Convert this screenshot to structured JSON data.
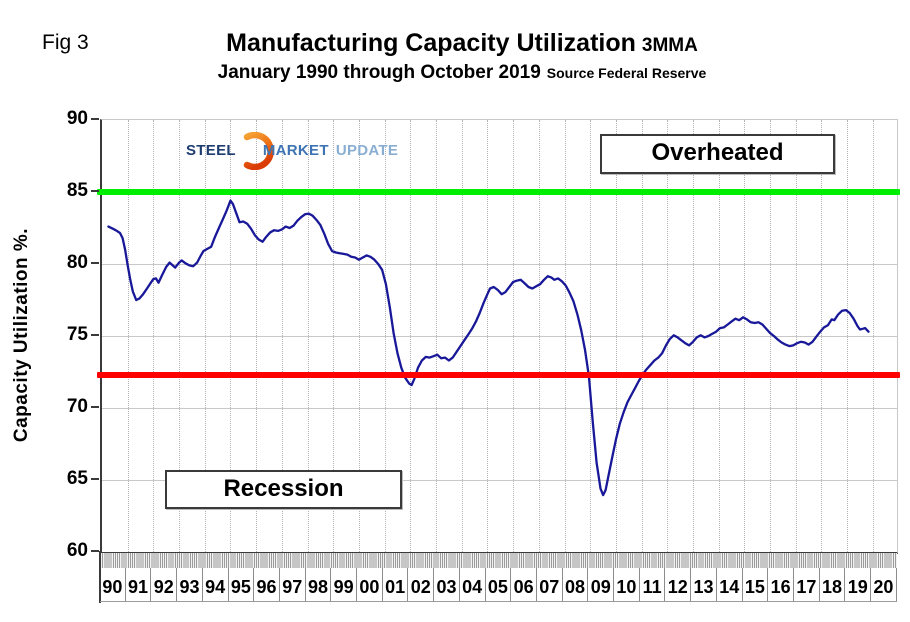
{
  "figure_label": "Fig 3",
  "title": {
    "main": "Manufacturing Capacity Utilization",
    "suffix": "3MMA"
  },
  "subtitle": {
    "main": "January 1990 through October 2019",
    "source": "Source Federal Reserve"
  },
  "logo": {
    "steel": "STEEL",
    "market": "MARKET",
    "update": "UPDATE"
  },
  "y_axis": {
    "title": "Capacity Utilization %.",
    "min": 60,
    "max": 90,
    "ticks": [
      90,
      85,
      80,
      75,
      70,
      65,
      60
    ]
  },
  "x_axis": {
    "start_year": 1990,
    "labels": [
      "90",
      "91",
      "92",
      "93",
      "94",
      "95",
      "96",
      "97",
      "98",
      "99",
      "00",
      "01",
      "02",
      "03",
      "04",
      "05",
      "06",
      "07",
      "08",
      "09",
      "10",
      "11",
      "12",
      "13",
      "14",
      "15",
      "16",
      "17",
      "18",
      "19",
      "20"
    ]
  },
  "reference_lines": [
    {
      "id": "overheated",
      "label": "Overheated",
      "value": 85,
      "color": "#00ee00"
    },
    {
      "id": "recession",
      "label": "Recession",
      "value": 72.3,
      "color": "#ff0000"
    }
  ],
  "colors": {
    "series_line": "#181899",
    "green_line": "#00ee00",
    "red_line": "#ff0000"
  },
  "chart_data": {
    "type": "line",
    "title": "Manufacturing Capacity Utilization 3MMA",
    "xlabel": "Year (Jan 1990 - Oct 2019)",
    "ylabel": "Capacity Utilization %.",
    "x_range": [
      1990,
      2020.94
    ],
    "y_range": [
      60,
      90
    ],
    "grid": true,
    "series": [
      {
        "name": "Manufacturing Capacity Utilization 3MMA",
        "color": "#181899",
        "points": [
          [
            1990.25,
            82.6
          ],
          [
            1990.42,
            82.45
          ],
          [
            1990.58,
            82.3
          ],
          [
            1990.7,
            82.15
          ],
          [
            1990.8,
            81.8
          ],
          [
            1990.9,
            81.0
          ],
          [
            1991.0,
            79.9
          ],
          [
            1991.1,
            78.9
          ],
          [
            1991.2,
            78.1
          ],
          [
            1991.33,
            77.5
          ],
          [
            1991.45,
            77.6
          ],
          [
            1991.6,
            77.9
          ],
          [
            1991.75,
            78.3
          ],
          [
            1991.9,
            78.7
          ],
          [
            1992.0,
            78.95
          ],
          [
            1992.1,
            79.0
          ],
          [
            1992.2,
            78.7
          ],
          [
            1992.33,
            79.2
          ],
          [
            1992.5,
            79.8
          ],
          [
            1992.63,
            80.1
          ],
          [
            1992.75,
            79.9
          ],
          [
            1992.85,
            79.75
          ],
          [
            1993.0,
            80.1
          ],
          [
            1993.1,
            80.25
          ],
          [
            1993.25,
            80.05
          ],
          [
            1993.4,
            79.9
          ],
          [
            1993.55,
            79.85
          ],
          [
            1993.7,
            80.1
          ],
          [
            1993.85,
            80.6
          ],
          [
            1993.95,
            80.9
          ],
          [
            1994.1,
            81.05
          ],
          [
            1994.25,
            81.2
          ],
          [
            1994.4,
            81.9
          ],
          [
            1994.55,
            82.5
          ],
          [
            1994.7,
            83.1
          ],
          [
            1994.85,
            83.7
          ],
          [
            1995.0,
            84.4
          ],
          [
            1995.1,
            84.15
          ],
          [
            1995.25,
            83.4
          ],
          [
            1995.35,
            82.9
          ],
          [
            1995.5,
            82.95
          ],
          [
            1995.65,
            82.8
          ],
          [
            1995.8,
            82.45
          ],
          [
            1995.95,
            82.0
          ],
          [
            1996.1,
            81.7
          ],
          [
            1996.25,
            81.55
          ],
          [
            1996.4,
            81.9
          ],
          [
            1996.55,
            82.2
          ],
          [
            1996.7,
            82.35
          ],
          [
            1996.85,
            82.3
          ],
          [
            1997.0,
            82.4
          ],
          [
            1997.15,
            82.6
          ],
          [
            1997.3,
            82.5
          ],
          [
            1997.45,
            82.65
          ],
          [
            1997.6,
            83.0
          ],
          [
            1997.75,
            83.25
          ],
          [
            1997.9,
            83.45
          ],
          [
            1998.05,
            83.5
          ],
          [
            1998.2,
            83.35
          ],
          [
            1998.35,
            83.05
          ],
          [
            1998.5,
            82.7
          ],
          [
            1998.65,
            82.1
          ],
          [
            1998.8,
            81.4
          ],
          [
            1998.95,
            80.9
          ],
          [
            1999.1,
            80.8
          ],
          [
            1999.25,
            80.75
          ],
          [
            1999.4,
            80.7
          ],
          [
            1999.55,
            80.65
          ],
          [
            1999.7,
            80.5
          ],
          [
            1999.85,
            80.45
          ],
          [
            2000.0,
            80.3
          ],
          [
            2000.15,
            80.45
          ],
          [
            2000.3,
            80.6
          ],
          [
            2000.45,
            80.5
          ],
          [
            2000.6,
            80.3
          ],
          [
            2000.75,
            80.0
          ],
          [
            2000.9,
            79.6
          ],
          [
            2001.05,
            78.6
          ],
          [
            2001.2,
            77.0
          ],
          [
            2001.35,
            75.2
          ],
          [
            2001.5,
            73.8
          ],
          [
            2001.65,
            72.8
          ],
          [
            2001.8,
            72.1
          ],
          [
            2001.95,
            71.7
          ],
          [
            2002.05,
            71.6
          ],
          [
            2002.15,
            72.0
          ],
          [
            2002.3,
            72.8
          ],
          [
            2002.45,
            73.3
          ],
          [
            2002.6,
            73.55
          ],
          [
            2002.75,
            73.5
          ],
          [
            2002.9,
            73.6
          ],
          [
            2003.05,
            73.7
          ],
          [
            2003.2,
            73.45
          ],
          [
            2003.35,
            73.5
          ],
          [
            2003.5,
            73.3
          ],
          [
            2003.65,
            73.5
          ],
          [
            2003.8,
            73.9
          ],
          [
            2003.95,
            74.3
          ],
          [
            2004.1,
            74.7
          ],
          [
            2004.25,
            75.1
          ],
          [
            2004.4,
            75.5
          ],
          [
            2004.55,
            76.0
          ],
          [
            2004.7,
            76.6
          ],
          [
            2004.85,
            77.3
          ],
          [
            2005.0,
            77.9
          ],
          [
            2005.1,
            78.3
          ],
          [
            2005.25,
            78.4
          ],
          [
            2005.4,
            78.2
          ],
          [
            2005.55,
            77.9
          ],
          [
            2005.7,
            78.05
          ],
          [
            2005.85,
            78.4
          ],
          [
            2006.0,
            78.75
          ],
          [
            2006.15,
            78.85
          ],
          [
            2006.3,
            78.9
          ],
          [
            2006.45,
            78.65
          ],
          [
            2006.6,
            78.4
          ],
          [
            2006.75,
            78.3
          ],
          [
            2006.9,
            78.45
          ],
          [
            2007.05,
            78.6
          ],
          [
            2007.2,
            78.9
          ],
          [
            2007.35,
            79.15
          ],
          [
            2007.5,
            79.05
          ],
          [
            2007.6,
            78.9
          ],
          [
            2007.75,
            79.0
          ],
          [
            2007.9,
            78.8
          ],
          [
            2008.05,
            78.5
          ],
          [
            2008.2,
            78.0
          ],
          [
            2008.35,
            77.4
          ],
          [
            2008.5,
            76.5
          ],
          [
            2008.65,
            75.4
          ],
          [
            2008.8,
            74.0
          ],
          [
            2008.95,
            72.2
          ],
          [
            2009.1,
            69.0
          ],
          [
            2009.25,
            66.2
          ],
          [
            2009.4,
            64.4
          ],
          [
            2009.5,
            63.95
          ],
          [
            2009.6,
            64.3
          ],
          [
            2009.7,
            65.2
          ],
          [
            2009.85,
            66.5
          ],
          [
            2010.0,
            67.8
          ],
          [
            2010.15,
            68.9
          ],
          [
            2010.3,
            69.7
          ],
          [
            2010.45,
            70.4
          ],
          [
            2010.6,
            70.9
          ],
          [
            2010.75,
            71.4
          ],
          [
            2010.9,
            71.9
          ],
          [
            2011.05,
            72.35
          ],
          [
            2011.2,
            72.7
          ],
          [
            2011.35,
            73.0
          ],
          [
            2011.5,
            73.3
          ],
          [
            2011.65,
            73.5
          ],
          [
            2011.8,
            73.8
          ],
          [
            2011.95,
            74.35
          ],
          [
            2012.1,
            74.8
          ],
          [
            2012.25,
            75.05
          ],
          [
            2012.4,
            74.9
          ],
          [
            2012.55,
            74.7
          ],
          [
            2012.7,
            74.5
          ],
          [
            2012.85,
            74.35
          ],
          [
            2013.0,
            74.6
          ],
          [
            2013.15,
            74.9
          ],
          [
            2013.3,
            75.05
          ],
          [
            2013.45,
            74.9
          ],
          [
            2013.6,
            75.0
          ],
          [
            2013.75,
            75.15
          ],
          [
            2013.9,
            75.3
          ],
          [
            2014.05,
            75.55
          ],
          [
            2014.2,
            75.6
          ],
          [
            2014.35,
            75.8
          ],
          [
            2014.5,
            76.0
          ],
          [
            2014.65,
            76.2
          ],
          [
            2014.8,
            76.1
          ],
          [
            2014.95,
            76.3
          ],
          [
            2015.1,
            76.15
          ],
          [
            2015.25,
            75.95
          ],
          [
            2015.4,
            75.9
          ],
          [
            2015.55,
            75.95
          ],
          [
            2015.7,
            75.8
          ],
          [
            2015.85,
            75.5
          ],
          [
            2016.0,
            75.2
          ],
          [
            2016.15,
            75.0
          ],
          [
            2016.3,
            74.75
          ],
          [
            2016.45,
            74.55
          ],
          [
            2016.6,
            74.4
          ],
          [
            2016.75,
            74.3
          ],
          [
            2016.9,
            74.35
          ],
          [
            2017.05,
            74.5
          ],
          [
            2017.2,
            74.6
          ],
          [
            2017.35,
            74.55
          ],
          [
            2017.5,
            74.4
          ],
          [
            2017.65,
            74.6
          ],
          [
            2017.8,
            74.95
          ],
          [
            2017.95,
            75.3
          ],
          [
            2018.1,
            75.6
          ],
          [
            2018.25,
            75.75
          ],
          [
            2018.4,
            76.15
          ],
          [
            2018.5,
            76.1
          ],
          [
            2018.65,
            76.5
          ],
          [
            2018.8,
            76.75
          ],
          [
            2018.95,
            76.8
          ],
          [
            2019.1,
            76.6
          ],
          [
            2019.25,
            76.2
          ],
          [
            2019.4,
            75.7
          ],
          [
            2019.5,
            75.45
          ],
          [
            2019.6,
            75.5
          ],
          [
            2019.7,
            75.55
          ],
          [
            2019.83,
            75.3
          ]
        ]
      }
    ]
  }
}
